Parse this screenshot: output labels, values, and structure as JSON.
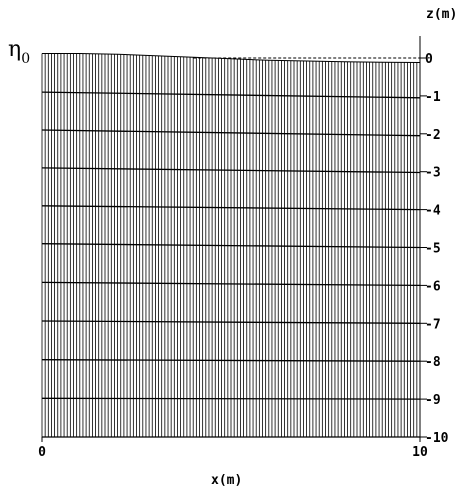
{
  "chart_data": {
    "type": "line",
    "title": "",
    "xlabel": "x(m)",
    "ylabel": "z(m)",
    "free_surface_label": "η",
    "free_surface_subscript": "0",
    "xlim": [
      0,
      10
    ],
    "ylim": [
      -10,
      0.6
    ],
    "x_ticks": [
      {
        "value": 0,
        "label": "0"
      },
      {
        "value": 10,
        "label": "10"
      }
    ],
    "y_ticks": [
      {
        "value": 0,
        "label": "0"
      },
      {
        "value": -1,
        "label": "-1"
      },
      {
        "value": -2,
        "label": "-2"
      },
      {
        "value": -3,
        "label": "-3"
      },
      {
        "value": -4,
        "label": "-4"
      },
      {
        "value": -5,
        "label": "-5"
      },
      {
        "value": -6,
        "label": "-6"
      },
      {
        "value": -7,
        "label": "-7"
      },
      {
        "value": -8,
        "label": "-8"
      },
      {
        "value": -9,
        "label": "-9"
      },
      {
        "value": -10,
        "label": "-10"
      }
    ],
    "vertical_mesh_lines": 120,
    "free_surface": {
      "x": [
        0,
        1,
        2,
        3,
        4,
        5,
        6,
        7,
        8,
        9,
        10
      ],
      "z": [
        0.12,
        0.12,
        0.1,
        0.06,
        0.02,
        -0.02,
        -0.06,
        -0.08,
        -0.1,
        -0.11,
        -0.12
      ]
    },
    "still_water_level": 0,
    "layers": [
      {
        "x": [
          0,
          10
        ],
        "z": [
          -0.9,
          -1.05
        ]
      },
      {
        "x": [
          0,
          10
        ],
        "z": [
          -1.9,
          -2.05
        ]
      },
      {
        "x": [
          0,
          10
        ],
        "z": [
          -2.9,
          -3.02
        ]
      },
      {
        "x": [
          0,
          10
        ],
        "z": [
          -3.9,
          -4.0
        ]
      },
      {
        "x": [
          0,
          10
        ],
        "z": [
          -4.9,
          -5.0
        ]
      },
      {
        "x": [
          0,
          10
        ],
        "z": [
          -5.92,
          -6.0
        ]
      },
      {
        "x": [
          0,
          10
        ],
        "z": [
          -6.94,
          -7.0
        ]
      },
      {
        "x": [
          0,
          10
        ],
        "z": [
          -7.96,
          -8.0
        ]
      },
      {
        "x": [
          0,
          10
        ],
        "z": [
          -8.98,
          -9.0
        ]
      },
      {
        "x": [
          0,
          10
        ],
        "z": [
          -10.0,
          -10.0
        ]
      }
    ]
  }
}
